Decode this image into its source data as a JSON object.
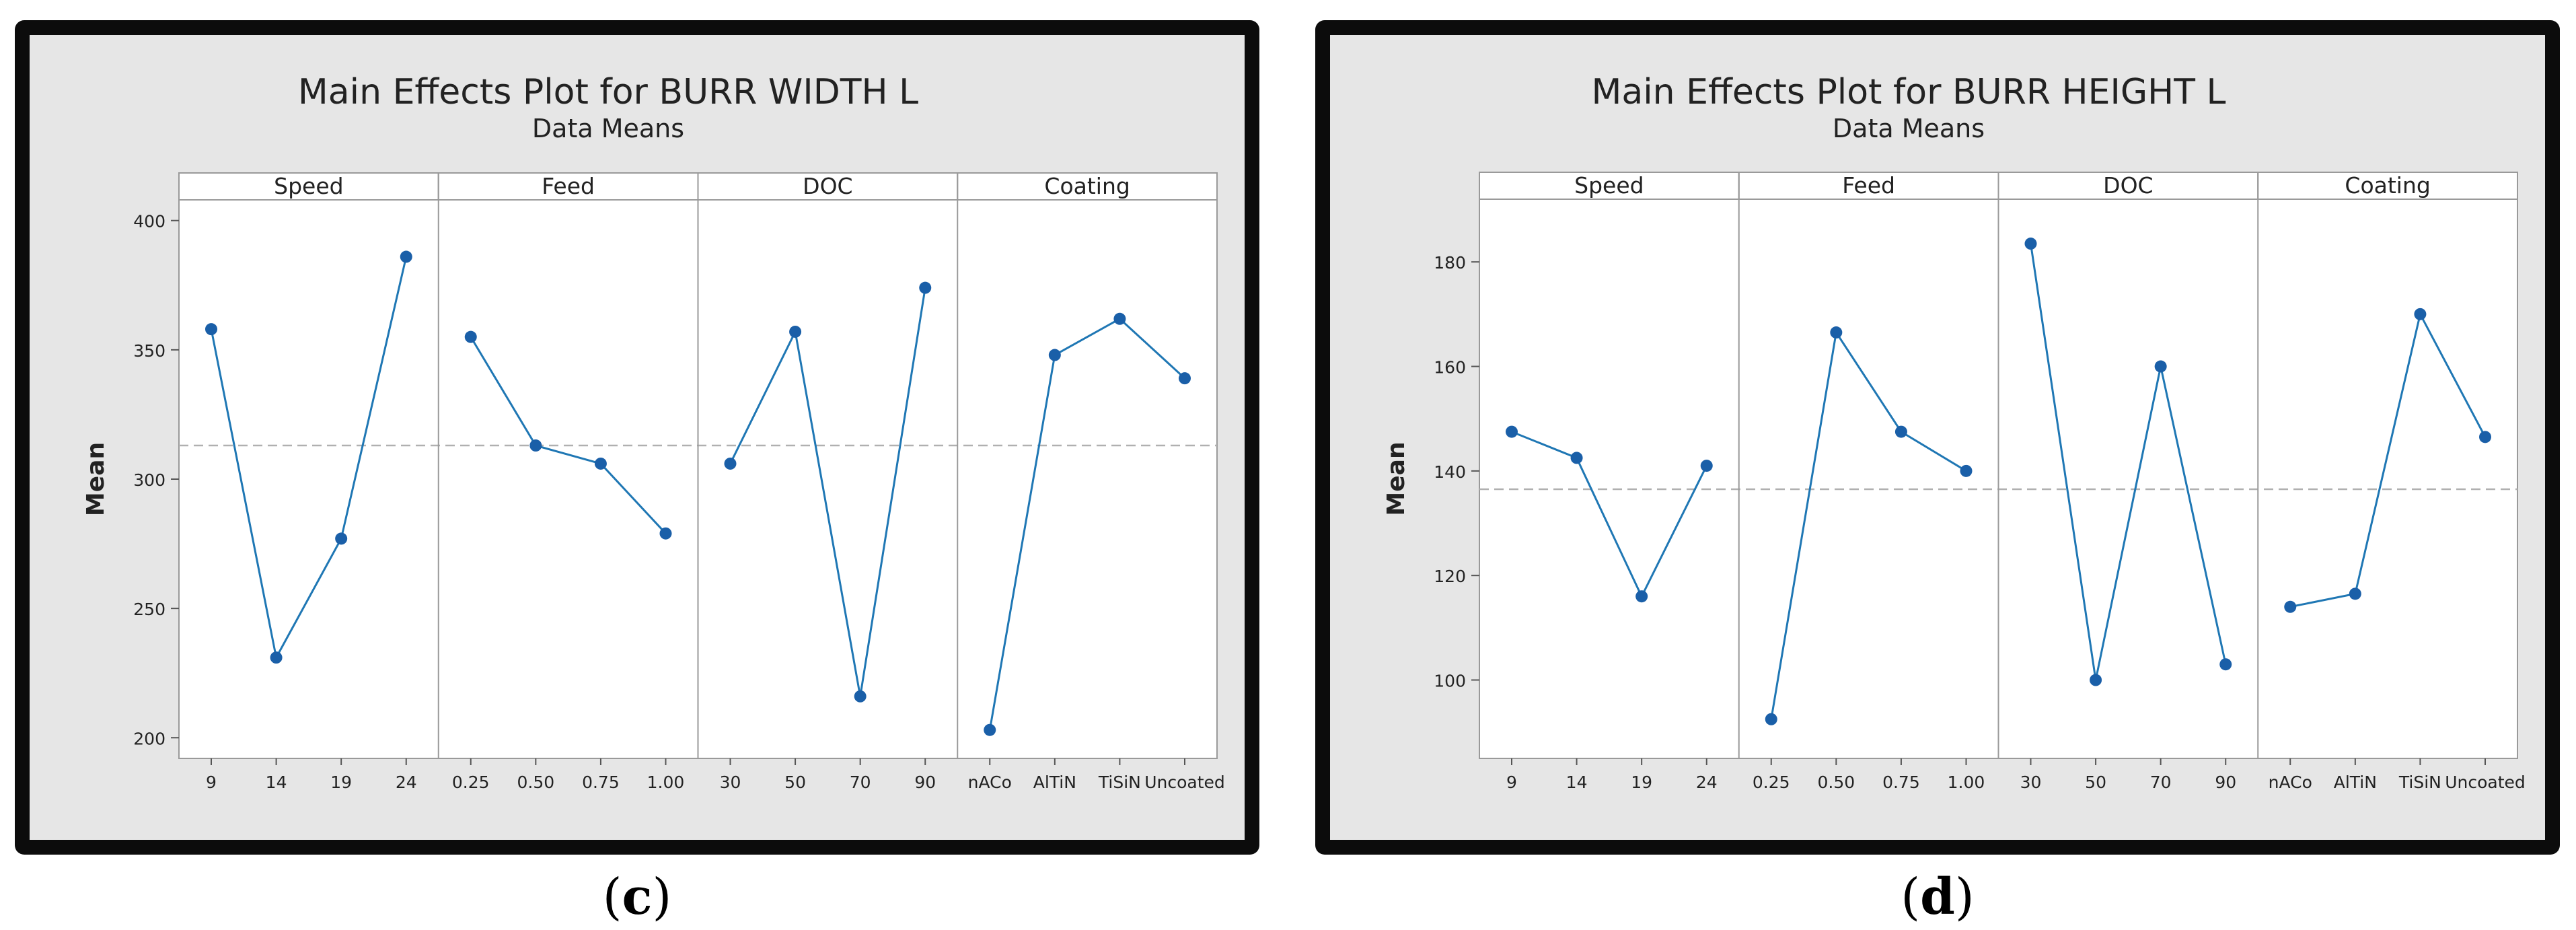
{
  "chart_data": [
    {
      "type": "line",
      "title": "Main Effects Plot for BURR WIDTH L",
      "subtitle": "Data Means",
      "ylabel": "Mean",
      "ylim": [
        192,
        408
      ],
      "yticks": [
        200,
        250,
        300,
        350,
        400
      ],
      "reference_line": 313,
      "facets": [
        {
          "name": "Speed",
          "categories": [
            "9",
            "14",
            "19",
            "24"
          ],
          "values": [
            358,
            231,
            277,
            386
          ]
        },
        {
          "name": "Feed",
          "categories": [
            "0.25",
            "0.50",
            "0.75",
            "1.00"
          ],
          "values": [
            355,
            313,
            306,
            279
          ]
        },
        {
          "name": "DOC",
          "categories": [
            "30",
            "50",
            "70",
            "90"
          ],
          "values": [
            306,
            357,
            216,
            374
          ]
        },
        {
          "name": "Coating",
          "categories": [
            "nACo",
            "AlTiN",
            "TiSiN",
            "Uncoated"
          ],
          "values": [
            203,
            348,
            362,
            339
          ]
        }
      ],
      "caption": "c",
      "colors": {
        "line": "#1f77b4",
        "point": "#1a5fa8",
        "reference": "#b0b0b0"
      }
    },
    {
      "type": "line",
      "title": "Main Effects Plot for BURR HEIGHT L",
      "subtitle": "Data Means",
      "ylabel": "Mean",
      "ylim": [
        85,
        192
      ],
      "yticks": [
        100,
        120,
        140,
        160,
        180
      ],
      "reference_line": 136.5,
      "facets": [
        {
          "name": "Speed",
          "categories": [
            "9",
            "14",
            "19",
            "24"
          ],
          "values": [
            147.5,
            142.5,
            116,
            141
          ]
        },
        {
          "name": "Feed",
          "categories": [
            "0.25",
            "0.50",
            "0.75",
            "1.00"
          ],
          "values": [
            92.5,
            166.5,
            147.5,
            140
          ]
        },
        {
          "name": "DOC",
          "categories": [
            "30",
            "50",
            "70",
            "90"
          ],
          "values": [
            183.5,
            100,
            160,
            103
          ]
        },
        {
          "name": "Coating",
          "categories": [
            "nACo",
            "AlTiN",
            "TiSiN",
            "Uncoated"
          ],
          "values": [
            114,
            116.5,
            170,
            146.5
          ]
        }
      ],
      "caption": "d",
      "colors": {
        "line": "#1f77b4",
        "point": "#1a5fa8",
        "reference": "#b0b0b0"
      }
    }
  ]
}
